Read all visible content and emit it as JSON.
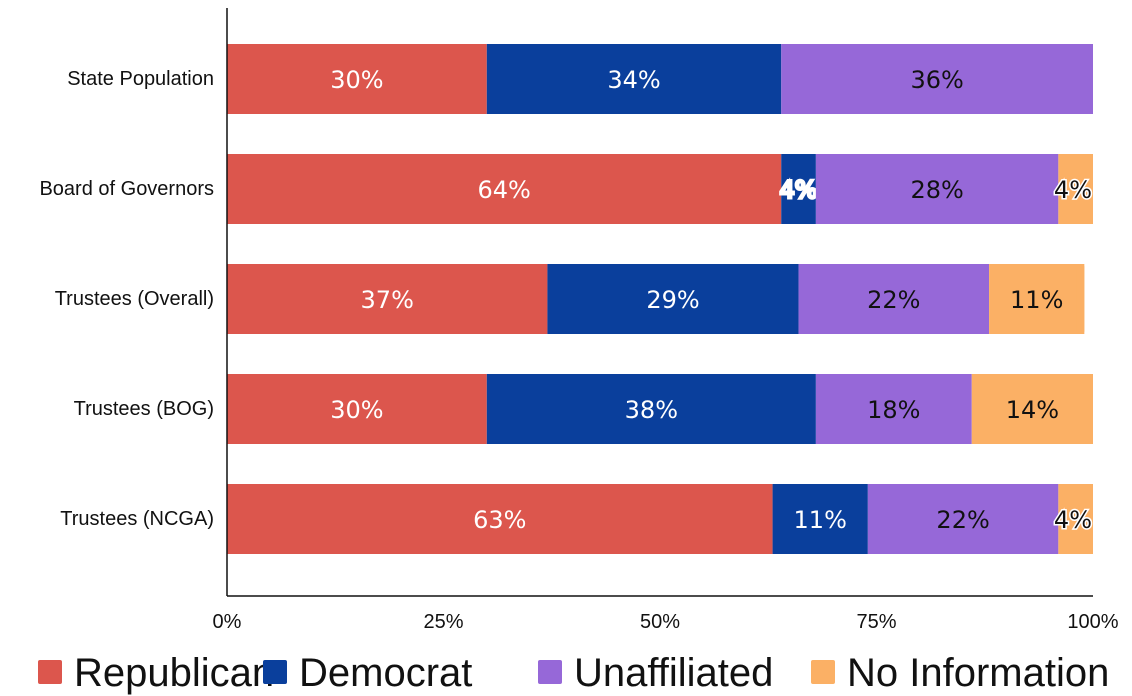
{
  "chart_data": {
    "type": "bar",
    "orientation": "horizontal",
    "stacked": true,
    "categories": [
      "State Population",
      "Board of Governors",
      "Trustees (Overall)",
      "Trustees (BOG)",
      "Trustees (NCGA)"
    ],
    "series": [
      {
        "name": "Republican",
        "color": "#dc564d",
        "label_color": "#ffffff",
        "values": [
          30,
          64,
          37,
          30,
          63
        ],
        "labels": [
          "30%",
          "64%",
          "37%",
          "30%",
          "63%"
        ]
      },
      {
        "name": "Democrat",
        "color": "#0a3f9c",
        "label_color": "#ffffff",
        "values": [
          34,
          4,
          29,
          38,
          11
        ],
        "labels": [
          "34%",
          "4%",
          "29%",
          "38%",
          "11%"
        ]
      },
      {
        "name": "Unaffiliated",
        "color": "#9668d8",
        "label_color": "#111111",
        "values": [
          36,
          28,
          22,
          18,
          22
        ],
        "labels": [
          "36%",
          "28%",
          "22%",
          "18%",
          "22%"
        ]
      },
      {
        "name": "No Information",
        "color": "#fbb065",
        "label_color": "#111111",
        "values": [
          0,
          4,
          11,
          14,
          4
        ],
        "labels": [
          "",
          "4%",
          "11%",
          "14%",
          "4%"
        ]
      }
    ],
    "xlim": [
      0,
      100
    ],
    "x_ticks": [
      "0%",
      "25%",
      "50%",
      "75%",
      "100%"
    ],
    "title": "",
    "xlabel": "",
    "ylabel": "",
    "grid": false,
    "legend": "bottom"
  }
}
